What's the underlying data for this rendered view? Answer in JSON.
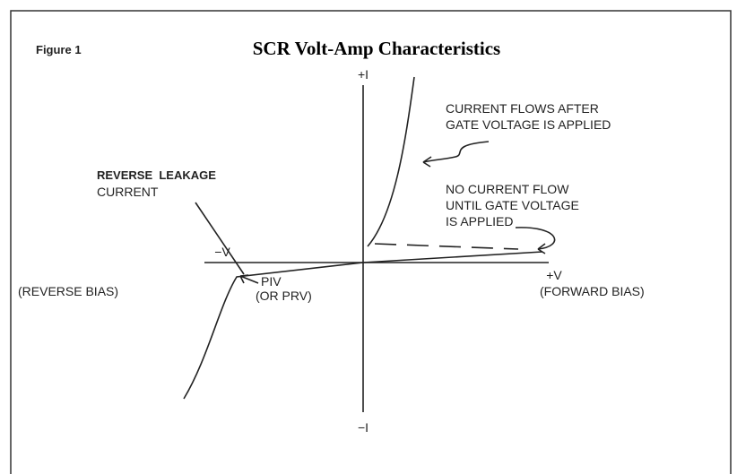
{
  "header": {
    "figure_label": "Figure 1",
    "title": "SCR Volt-Amp Characteristics"
  },
  "axes": {
    "y_positive": "+I",
    "y_negative": "−I",
    "x_negative": "−V",
    "x_negative_note": "(REVERSE BIAS)",
    "x_positive": "+V",
    "x_positive_note": "(FORWARD BIAS)"
  },
  "annotations": {
    "current_flows": [
      "CURRENT FLOWS AFTER",
      "GATE VOLTAGE IS APPLIED"
    ],
    "no_current": [
      "NO CURRENT FLOW",
      "UNTIL GATE VOLTAGE",
      "IS APPLIED"
    ],
    "reverse_leakage": [
      "REVERSE  LEAKAGE",
      "CURRENT"
    ],
    "piv": [
      "PIV",
      "(OR PRV)"
    ]
  }
}
